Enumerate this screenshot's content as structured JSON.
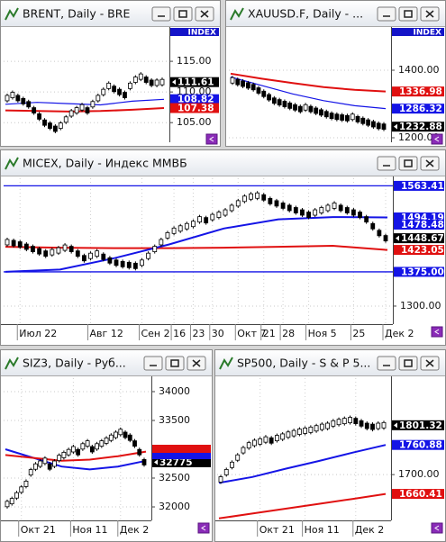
{
  "windows": [
    {
      "title": "BRENT, Daily - BRE",
      "axis_header": "INDEX",
      "ylim": [
        101.8,
        120.3
      ],
      "yticks": [
        {
          "value": 115,
          "label": "115.00"
        },
        {
          "value": 110,
          "label": "110.00"
        },
        {
          "value": 105,
          "label": "105.00"
        }
      ],
      "flags": [
        {
          "value": 111.61,
          "label": "111.61",
          "color": "#000000"
        },
        {
          "value": 108.82,
          "label": "108.82",
          "color": "#1414e6"
        },
        {
          "value": 107.38,
          "label": "107.38",
          "color": "#e01010"
        }
      ],
      "values": [
        109,
        109.5,
        109,
        108.5,
        108,
        107,
        106,
        105,
        104.5,
        104,
        104.5,
        105.5,
        106.5,
        107,
        107.5,
        107,
        108,
        109,
        110,
        111,
        110.5,
        110,
        109.5,
        111,
        112,
        112.5,
        112,
        111.5,
        111.5,
        111.61
      ],
      "lines": [
        {
          "color": "#1414e6",
          "width": 1.2,
          "values": [
            108,
            108.3,
            108.1,
            107.9,
            108.5,
            108.8
          ]
        },
        {
          "color": "#e01010",
          "width": 2,
          "values": [
            107,
            106.9,
            106.8,
            106.9,
            107.1,
            107.38
          ]
        }
      ]
    },
    {
      "title": "XAUUSD.F, Daily - ...",
      "axis_header": "INDEX",
      "ylim": [
        1186.7,
        1522.7
      ],
      "yticks": [
        {
          "value": 1400,
          "label": "1400.00"
        },
        {
          "value": 1200,
          "label": "1200.00"
        }
      ],
      "flags": [
        {
          "value": 1336.98,
          "label": "1336.98",
          "color": "#e01010"
        },
        {
          "value": 1286.32,
          "label": "1286.32",
          "color": "#1414e6"
        },
        {
          "value": 1232.88,
          "label": "1232.88",
          "color": "#000000"
        }
      ],
      "values": [
        1370,
        1365,
        1360,
        1355,
        1350,
        1340,
        1330,
        1320,
        1310,
        1305,
        1300,
        1295,
        1290,
        1285,
        1290,
        1285,
        1280,
        1275,
        1270,
        1265,
        1262,
        1260,
        1258,
        1262,
        1255,
        1250,
        1245,
        1240,
        1235,
        1232.88
      ],
      "lines": [
        {
          "color": "#e01010",
          "width": 2,
          "values": [
            1390,
            1375,
            1362,
            1350,
            1342,
            1336.98
          ]
        },
        {
          "color": "#1414e6",
          "width": 1.2,
          "values": [
            1380,
            1355,
            1330,
            1310,
            1295,
            1286.32
          ]
        }
      ]
    },
    {
      "title": "MICEX, Daily - Индекс ММВБ",
      "ylim": [
        1260.5,
        1580
      ],
      "yticks": [
        {
          "value": 1300,
          "label": "1300.00"
        }
      ],
      "flags": [
        {
          "value": 1563.41,
          "label": "1563.41",
          "color": "#1414e6",
          "hline": true
        },
        {
          "value": 1494.19,
          "label": "1494.19",
          "color": "#1414e6"
        },
        {
          "value": 1478.48,
          "label": "1478.48",
          "color": "#1414e6"
        },
        {
          "value": 1448.67,
          "label": "1448.67",
          "color": "#000000"
        },
        {
          "value": 1423.05,
          "label": "1423.05",
          "color": "#e01010"
        },
        {
          "value": 1375,
          "label": "1375.00",
          "color": "#1414e6",
          "hline": true
        }
      ],
      "values": [
        1440,
        1438,
        1435,
        1430,
        1425,
        1420,
        1415,
        1418,
        1422,
        1428,
        1425,
        1415,
        1405,
        1410,
        1415,
        1408,
        1400,
        1395,
        1392,
        1390,
        1388,
        1395,
        1410,
        1425,
        1440,
        1455,
        1465,
        1470,
        1475,
        1480,
        1490,
        1488,
        1495,
        1500,
        1505,
        1515,
        1525,
        1535,
        1540,
        1542,
        1538,
        1530,
        1525,
        1520,
        1515,
        1510,
        1505,
        1500,
        1505,
        1510,
        1515,
        1520,
        1515,
        1510,
        1505,
        1500,
        1490,
        1475,
        1460,
        1448.67
      ],
      "categories": [
        null,
        null,
        "Июл 22",
        null,
        null,
        null,
        null,
        null,
        null,
        null,
        null,
        null,
        null,
        "Авг 12",
        null,
        null,
        null,
        null,
        null,
        null,
        null,
        "Сен 2",
        null,
        null,
        null,
        null,
        "16",
        null,
        null,
        "23",
        null,
        null,
        "30",
        null,
        null,
        null,
        "Окт 7",
        null,
        null,
        null,
        "21",
        null,
        null,
        "28",
        null,
        null,
        null,
        "Ноя 5",
        null,
        null,
        null,
        null,
        null,
        null,
        "25",
        null,
        null,
        null,
        null,
        "Дек 2"
      ],
      "lines": [
        {
          "color": "#e01010",
          "width": 2,
          "values": [
            1430,
            1428,
            1427,
            1427,
            1428,
            1430,
            1432,
            1423.05
          ]
        },
        {
          "color": "#1414e6",
          "width": 2,
          "values": [
            1375,
            1380,
            1405,
            1435,
            1470,
            1490,
            1495,
            1494.19
          ]
        }
      ]
    },
    {
      "title": "SIZ3, Daily - Руб...",
      "ylim": [
        31766,
        34234
      ],
      "yticks": [
        34000,
        33500,
        32500,
        32000
      ],
      "flags": [
        {
          "value": 32775,
          "label": "32775",
          "color": "#000000"
        }
      ],
      "values": [
        32050,
        32100,
        32200,
        32300,
        32400,
        32600,
        32700,
        32750,
        32800,
        32700,
        32750,
        32850,
        32900,
        32950,
        33000,
        32950,
        33050,
        33100,
        33000,
        33050,
        33100,
        33150,
        33200,
        33250,
        33300,
        33250,
        33200,
        33100,
        32950,
        32775
      ],
      "categories": [
        null,
        null,
        null,
        "Окт 21",
        null,
        null,
        null,
        null,
        null,
        null,
        null,
        null,
        null,
        null,
        "Ноя 11",
        null,
        null,
        null,
        null,
        null,
        null,
        null,
        null,
        null,
        "Дек 2",
        null,
        null,
        null,
        null,
        null
      ],
      "lines": [
        {
          "color": "#1414e6",
          "width": 2,
          "values": [
            33000,
            32850,
            32700,
            32650,
            32700,
            32800
          ]
        },
        {
          "color": "#e01010",
          "width": 2,
          "values": [
            32900,
            32850,
            32800,
            32820,
            32880,
            32960
          ]
        }
      ]
    },
    {
      "title": "SP500, Daily - S & P 5...",
      "ylim": [
        1606,
        1898
      ],
      "yticks": [
        {
          "value": 1700,
          "label": "1700.00"
        }
      ],
      "flags": [
        {
          "value": 1801.32,
          "label": "1801.32",
          "color": "#000000"
        },
        {
          "value": 1760.88,
          "label": "1760.88",
          "color": "#1414e6"
        },
        {
          "value": 1660.41,
          "label": "1660.41",
          "color": "#e01010"
        }
      ],
      "values": [
        1690,
        1705,
        1720,
        1735,
        1750,
        1760,
        1765,
        1768,
        1772,
        1770,
        1775,
        1778,
        1782,
        1785,
        1788,
        1790,
        1792,
        1795,
        1798,
        1800,
        1805,
        1808,
        1810,
        1812,
        1810,
        1805,
        1800,
        1798,
        1800,
        1801.32
      ],
      "categories": [
        null,
        null,
        null,
        null,
        null,
        null,
        null,
        "Окт 21",
        null,
        null,
        null,
        null,
        null,
        null,
        null,
        "Ноя 11",
        null,
        null,
        null,
        null,
        null,
        null,
        null,
        null,
        "Дек 2",
        null,
        null,
        null,
        null,
        null
      ],
      "lines": [
        {
          "color": "#1414e6",
          "width": 2,
          "values": [
            1683,
            1695,
            1712,
            1728,
            1745,
            1760.88
          ]
        },
        {
          "color": "#e01010",
          "width": 2,
          "values": [
            1610,
            1620,
            1630,
            1640,
            1650,
            1660.41
          ]
        }
      ]
    }
  ]
}
